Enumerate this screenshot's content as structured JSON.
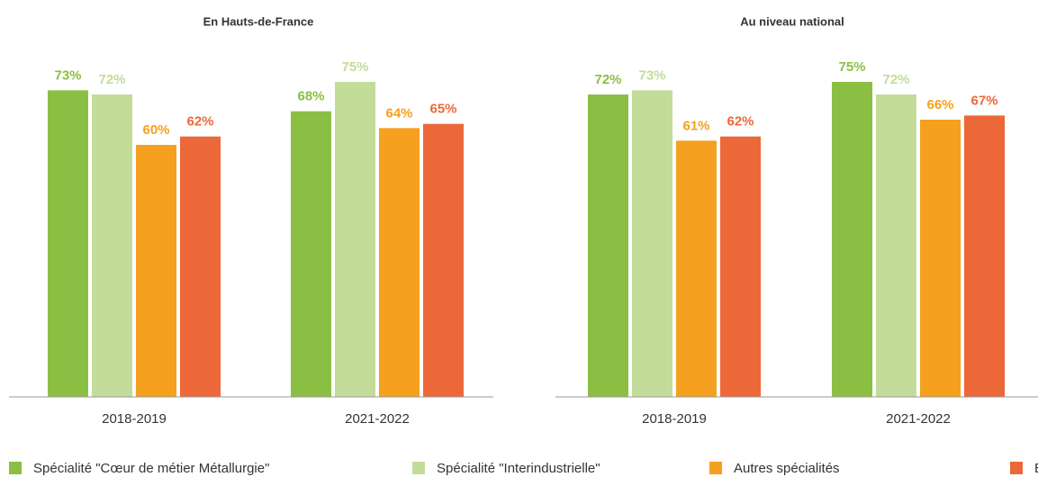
{
  "chart_data": [
    {
      "type": "bar",
      "title": "En Hauts-de-France",
      "categories": [
        "2018-2019",
        "2021-2022"
      ],
      "series": [
        {
          "name": "Spécialité \"Cœur de métier Métallurgie\"",
          "color": "#8bbf44",
          "values": [
            73,
            68
          ],
          "value_labels": [
            "73%",
            "68%"
          ]
        },
        {
          "name": "Spécialité \"Interindustrielle\"",
          "color": "#c3dc9a",
          "values": [
            72,
            75
          ],
          "value_labels": [
            "72%",
            "75%"
          ]
        },
        {
          "name": "Autres spécialités",
          "color": "#f5a01f",
          "values": [
            60,
            64
          ],
          "value_labels": [
            "60%",
            "64%"
          ]
        },
        {
          "name": "Ensemble",
          "color": "#ec6839",
          "values": [
            62,
            65
          ],
          "value_labels": [
            "62%",
            "65%"
          ]
        }
      ]
    },
    {
      "type": "bar",
      "title": "Au niveau national",
      "categories": [
        "2018-2019",
        "2021-2022"
      ],
      "series": [
        {
          "name": "Spécialité \"Cœur de métier Métallurgie\"",
          "color": "#8bbf44",
          "values": [
            72,
            75
          ],
          "value_labels": [
            "72%",
            "75%"
          ]
        },
        {
          "name": "Spécialité \"Interindustrielle\"",
          "color": "#c3dc9a",
          "values": [
            73,
            72
          ],
          "value_labels": [
            "73%",
            "72%"
          ]
        },
        {
          "name": "Autres spécialités",
          "color": "#f5a01f",
          "values": [
            61,
            66
          ],
          "value_labels": [
            "61%",
            "66%"
          ]
        },
        {
          "name": "Ensemble",
          "color": "#ec6839",
          "values": [
            62,
            67
          ],
          "value_labels": [
            "62%",
            "67%"
          ]
        }
      ]
    }
  ]
}
